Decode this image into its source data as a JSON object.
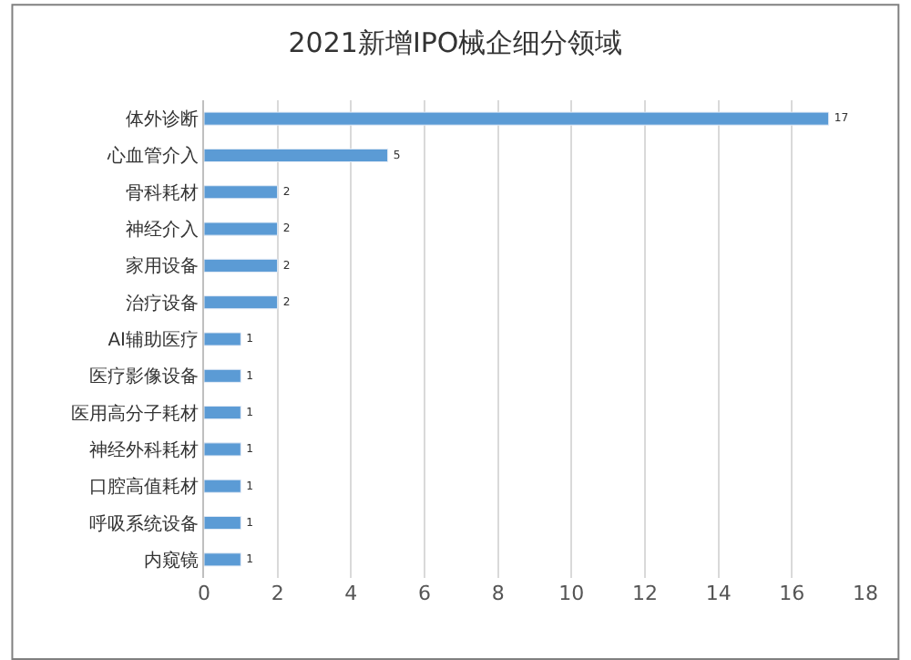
{
  "chart_data": {
    "type": "bar",
    "orientation": "horizontal",
    "title": "2021新增IPO械企细分领域",
    "categories": [
      "体外诊断",
      "心血管介入",
      "骨科耗材",
      "神经介入",
      "家用设备",
      "治疗设备",
      "AI辅助医疗",
      "医疗影像设备",
      "医用高分子耗材",
      "神经外科耗材",
      "口腔高值耗材",
      "呼吸系统设备",
      "内窥镜"
    ],
    "values": [
      17,
      5,
      2,
      2,
      2,
      2,
      1,
      1,
      1,
      1,
      1,
      1,
      1
    ],
    "color": "#5b9bd5",
    "data_labels": true,
    "grid": "x",
    "legend": false,
    "xlim": [
      0,
      18
    ],
    "xticks": [
      0,
      2,
      4,
      6,
      8,
      10,
      12,
      14,
      16,
      18
    ]
  }
}
